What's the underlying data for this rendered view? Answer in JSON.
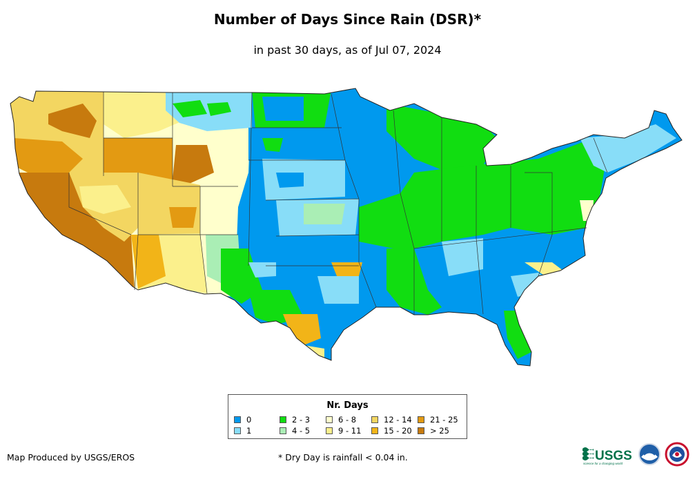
{
  "title": "Number of Days Since Rain (DSR)*",
  "subtitle": "in past 30 days, as of Jul 07, 2024",
  "legend": {
    "title": "Nr. Days",
    "items": [
      {
        "label": "0",
        "color": "#0099ee"
      },
      {
        "label": "1",
        "color": "#88ddf8"
      },
      {
        "label": "2 - 3",
        "color": "#11dd11"
      },
      {
        "label": "4 - 5",
        "color": "#aaeeb5"
      },
      {
        "label": "6 - 8",
        "color": "#ffffcc"
      },
      {
        "label": "9 - 11",
        "color": "#fbf08c"
      },
      {
        "label": "12 - 14",
        "color": "#f3d661"
      },
      {
        "label": "15 - 20",
        "color": "#f2b418"
      },
      {
        "label": "21 - 25",
        "color": "#e39a12"
      },
      {
        "label": "> 25",
        "color": "#c77a0e"
      }
    ]
  },
  "credit": "Map Produced by USGS/EROS",
  "footnote": "* Dry Day is rainfall < 0.04 in.",
  "logos": {
    "usgs": {
      "text": "USGS",
      "tagline": "science for a changing world"
    },
    "noaa": {
      "text": "NOAA"
    },
    "nws": {
      "text": "NWS"
    }
  }
}
